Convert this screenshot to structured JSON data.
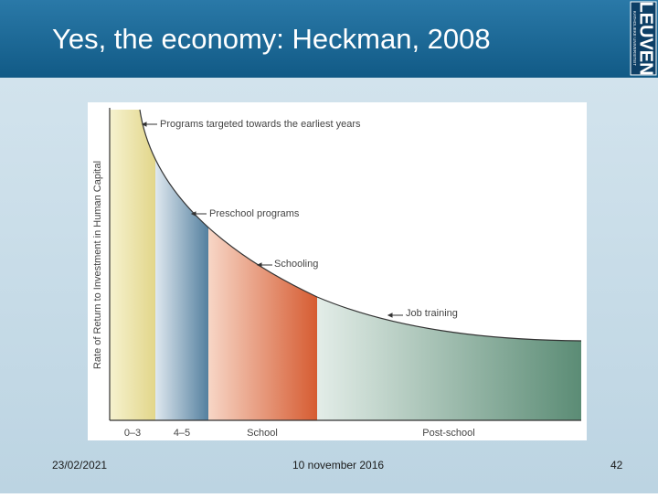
{
  "header": {
    "title": "Yes, the economy: Heckman, 2008",
    "logo": {
      "name": "LEUVEN",
      "subtitle": "KATHOLIEKE UNIVERSITEIT"
    }
  },
  "figure": {
    "y_label": "Rate of Return to Investment in Human Capital",
    "categories": [
      "0–3",
      "4–5",
      "School",
      "Post-school"
    ],
    "annotations": [
      "Programs targeted towards the earliest years",
      "Preschool programs",
      "Schooling",
      "Job training"
    ]
  },
  "footer": {
    "date": "23/02/2021",
    "text": "10 november 2016",
    "page": "42"
  }
}
